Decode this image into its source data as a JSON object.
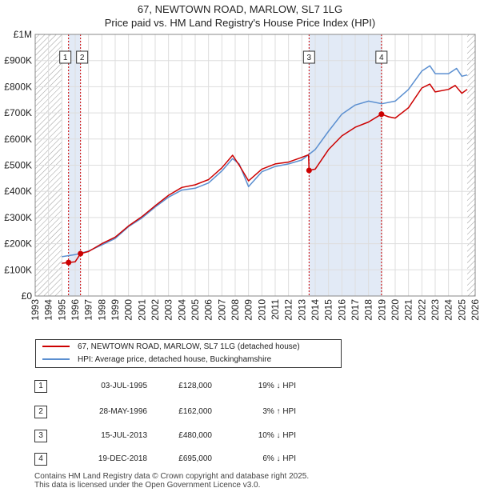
{
  "title": "67, NEWTOWN ROAD, MARLOW, SL7 1LG",
  "subtitle": "Price paid vs. HM Land Registry's House Price Index (HPI)",
  "colors": {
    "price_line": "#cc0000",
    "hpi_line": "#5b8fd0",
    "highlight_band": "#dde6f5",
    "marker_line": "#cc0000",
    "grid": "#dddddd",
    "hatch": "#999999"
  },
  "chart_data": {
    "type": "line",
    "title": "67, NEWTOWN ROAD, MARLOW, SL7 1LG",
    "subtitle": "Price paid vs. HM Land Registry's House Price Index (HPI)",
    "xlabel": "",
    "ylabel": "",
    "xlim": [
      1993,
      2026
    ],
    "ylim": [
      0,
      1000000
    ],
    "x_ticks": [
      1993,
      1994,
      1995,
      1996,
      1997,
      1998,
      1999,
      2000,
      2001,
      2002,
      2003,
      2004,
      2005,
      2006,
      2007,
      2008,
      2009,
      2010,
      2011,
      2012,
      2013,
      2014,
      2015,
      2016,
      2017,
      2018,
      2019,
      2020,
      2021,
      2022,
      2023,
      2024,
      2025,
      2026
    ],
    "y_ticks": [
      {
        "value": 0,
        "label": "£0"
      },
      {
        "value": 100000,
        "label": "£100K"
      },
      {
        "value": 200000,
        "label": "£200K"
      },
      {
        "value": 300000,
        "label": "£300K"
      },
      {
        "value": 400000,
        "label": "£400K"
      },
      {
        "value": 500000,
        "label": "£500K"
      },
      {
        "value": 600000,
        "label": "£600K"
      },
      {
        "value": 700000,
        "label": "£700K"
      },
      {
        "value": 800000,
        "label": "£800K"
      },
      {
        "value": 900000,
        "label": "£900K"
      },
      {
        "value": 1000000,
        "label": "£1M"
      }
    ],
    "data_range": [
      1995.0,
      2025.4
    ],
    "highlight_spans": [
      [
        1995.5,
        1996.4
      ],
      [
        2013.54,
        2018.97
      ]
    ],
    "series": [
      {
        "name": "67, NEWTOWN ROAD, MARLOW, SL7 1LG (detached house)",
        "color": "#cc0000",
        "points": [
          [
            1995.0,
            125000
          ],
          [
            1995.5,
            128000
          ],
          [
            1996.0,
            131000
          ],
          [
            1996.4,
            162000
          ],
          [
            1997.0,
            170000
          ],
          [
            1998.0,
            200000
          ],
          [
            1999.0,
            225000
          ],
          [
            2000.0,
            268000
          ],
          [
            2001.0,
            303000
          ],
          [
            2002.0,
            345000
          ],
          [
            2003.0,
            385000
          ],
          [
            2004.0,
            415000
          ],
          [
            2005.0,
            425000
          ],
          [
            2006.0,
            445000
          ],
          [
            2007.0,
            490000
          ],
          [
            2007.8,
            538000
          ],
          [
            2008.3,
            500000
          ],
          [
            2009.0,
            440000
          ],
          [
            2010.0,
            485000
          ],
          [
            2011.0,
            505000
          ],
          [
            2012.0,
            512000
          ],
          [
            2013.0,
            530000
          ],
          [
            2013.5,
            540000
          ],
          [
            2013.54,
            480000
          ],
          [
            2014.0,
            485000
          ],
          [
            2015.0,
            560000
          ],
          [
            2016.0,
            612000
          ],
          [
            2017.0,
            645000
          ],
          [
            2018.0,
            665000
          ],
          [
            2018.97,
            695000
          ],
          [
            2019.5,
            685000
          ],
          [
            2020.0,
            680000
          ],
          [
            2021.0,
            720000
          ],
          [
            2022.0,
            795000
          ],
          [
            2022.6,
            810000
          ],
          [
            2023.0,
            780000
          ],
          [
            2024.0,
            790000
          ],
          [
            2024.5,
            805000
          ],
          [
            2025.0,
            775000
          ],
          [
            2025.4,
            790000
          ]
        ]
      },
      {
        "name": "HPI: Average price, detached house, Buckinghamshire",
        "color": "#5b8fd0",
        "points": [
          [
            1995.0,
            150000
          ],
          [
            1996.0,
            158000
          ],
          [
            1997.0,
            172000
          ],
          [
            1998.0,
            195000
          ],
          [
            1999.0,
            220000
          ],
          [
            2000.0,
            265000
          ],
          [
            2001.0,
            298000
          ],
          [
            2002.0,
            340000
          ],
          [
            2003.0,
            378000
          ],
          [
            2004.0,
            405000
          ],
          [
            2005.0,
            412000
          ],
          [
            2006.0,
            432000
          ],
          [
            2007.0,
            478000
          ],
          [
            2007.8,
            525000
          ],
          [
            2008.3,
            505000
          ],
          [
            2009.0,
            418000
          ],
          [
            2010.0,
            475000
          ],
          [
            2011.0,
            495000
          ],
          [
            2012.0,
            505000
          ],
          [
            2013.0,
            520000
          ],
          [
            2014.0,
            560000
          ],
          [
            2015.0,
            630000
          ],
          [
            2016.0,
            695000
          ],
          [
            2017.0,
            730000
          ],
          [
            2018.0,
            745000
          ],
          [
            2019.0,
            735000
          ],
          [
            2020.0,
            745000
          ],
          [
            2021.0,
            790000
          ],
          [
            2022.0,
            860000
          ],
          [
            2022.6,
            880000
          ],
          [
            2023.0,
            850000
          ],
          [
            2024.0,
            850000
          ],
          [
            2024.6,
            870000
          ],
          [
            2025.0,
            840000
          ],
          [
            2025.4,
            845000
          ]
        ]
      }
    ],
    "sales": [
      {
        "id": "1",
        "x": 1995.5,
        "price": 128000
      },
      {
        "id": "2",
        "x": 1996.4,
        "price": 162000
      },
      {
        "id": "3",
        "x": 2013.54,
        "price": 480000
      },
      {
        "id": "4",
        "x": 2018.97,
        "price": 695000
      }
    ]
  },
  "legend": {
    "price_label": "67, NEWTOWN ROAD, MARLOW, SL7 1LG (detached house)",
    "hpi_label": "HPI: Average price, detached house, Buckinghamshire"
  },
  "sales_table": [
    {
      "id": "1",
      "date": "03-JUL-1995",
      "price": "£128,000",
      "hpi": "19% ↓ HPI"
    },
    {
      "id": "2",
      "date": "28-MAY-1996",
      "price": "£162,000",
      "hpi": "3% ↑ HPI"
    },
    {
      "id": "3",
      "date": "15-JUL-2013",
      "price": "£480,000",
      "hpi": "10% ↓ HPI"
    },
    {
      "id": "4",
      "date": "19-DEC-2018",
      "price": "£695,000",
      "hpi": "6% ↓ HPI"
    }
  ],
  "footer": {
    "line1": "Contains HM Land Registry data © Crown copyright and database right 2025.",
    "line2": "This data is licensed under the Open Government Licence v3.0."
  }
}
